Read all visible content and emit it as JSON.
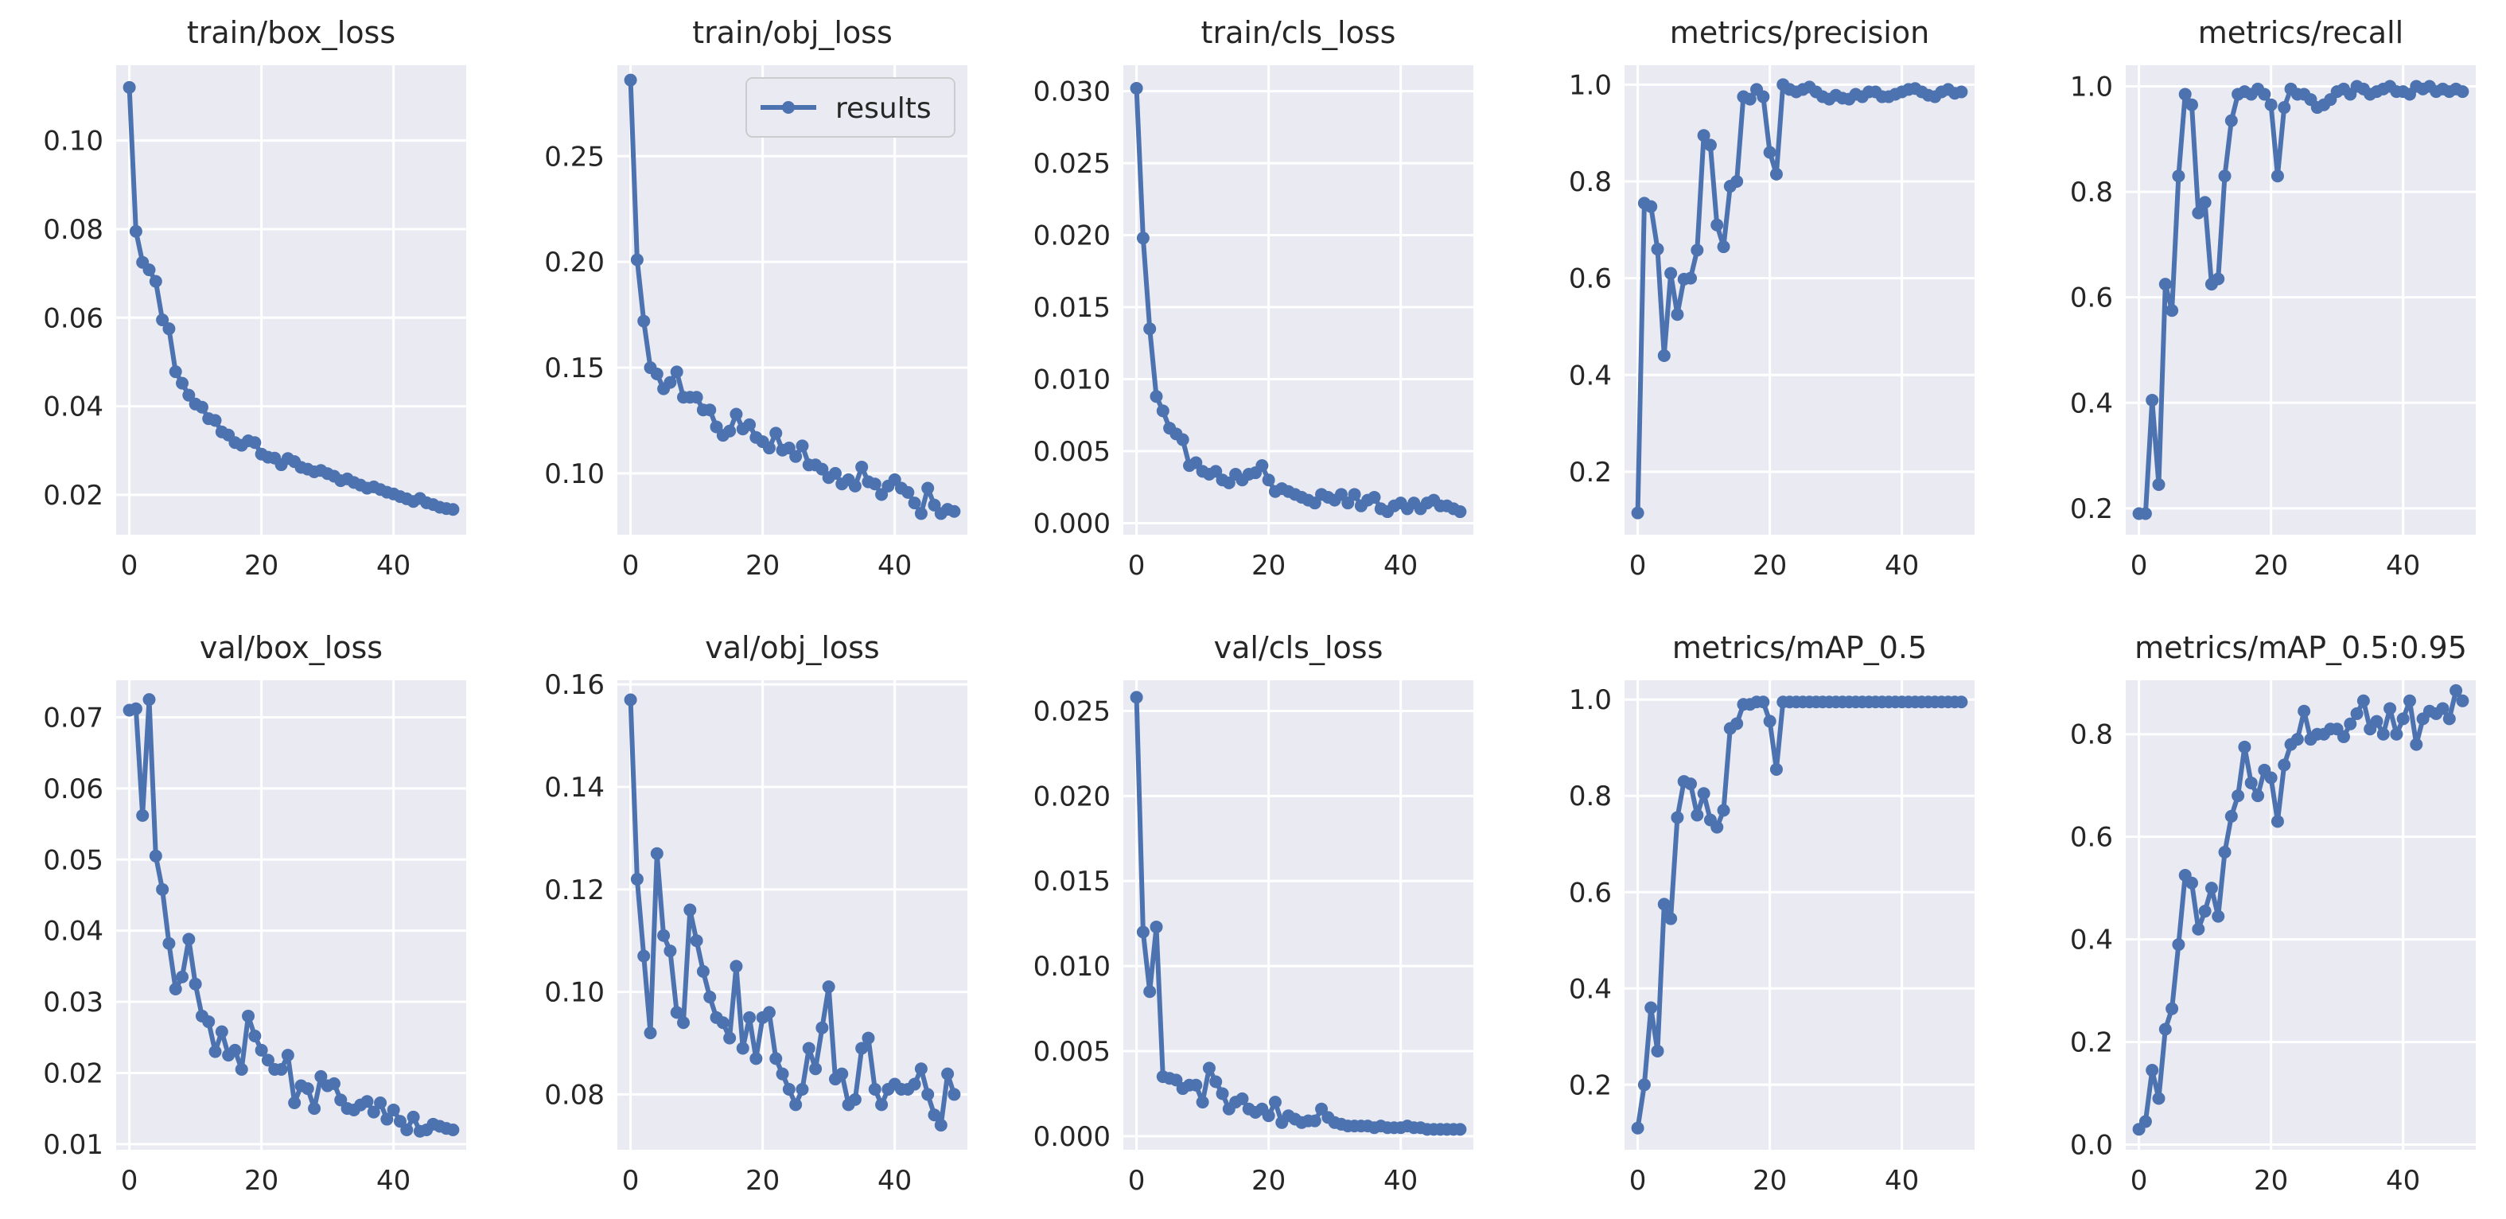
{
  "figure": {
    "colors": {
      "background": "#ffffff",
      "axes_face": "#eaeaf2",
      "grid": "#ffffff",
      "series": "#4c72b0",
      "text": "#262626"
    },
    "legend": {
      "label": "results",
      "placement": "top-right",
      "panel": "train/obj_loss"
    }
  },
  "chart_data": [
    {
      "type": "line",
      "title": "train/box_loss",
      "xlim": [
        -2,
        51
      ],
      "ylim": [
        0.011,
        0.117
      ],
      "xticks": [
        0,
        20,
        40
      ],
      "xtick_labels": [
        "0",
        "20",
        "40"
      ],
      "yticks": [
        0.02,
        0.04,
        0.06,
        0.08,
        0.1
      ],
      "ytick_labels": [
        "0.02",
        "0.04",
        "0.06",
        "0.08",
        "0.10"
      ],
      "series": [
        {
          "name": "results",
          "values": [
            0.112,
            0.0795,
            0.0725,
            0.0708,
            0.0682,
            0.0595,
            0.0575,
            0.0478,
            0.0452,
            0.0425,
            0.0405,
            0.0398,
            0.0372,
            0.0368,
            0.0342,
            0.0335,
            0.0318,
            0.0312,
            0.0322,
            0.0318,
            0.0292,
            0.0285,
            0.0283,
            0.0268,
            0.0282,
            0.0275,
            0.0262,
            0.0258,
            0.0252,
            0.0255,
            0.0248,
            0.0242,
            0.0232,
            0.0236,
            0.0228,
            0.0222,
            0.0215,
            0.0218,
            0.0212,
            0.0206,
            0.0202,
            0.0196,
            0.0191,
            0.0185,
            0.0192,
            0.0182,
            0.0178,
            0.0172,
            0.0169,
            0.0167
          ]
        }
      ]
    },
    {
      "type": "line",
      "title": "train/obj_loss",
      "xlim": [
        -2,
        51
      ],
      "ylim": [
        0.071,
        0.293
      ],
      "xticks": [
        0,
        20,
        40
      ],
      "xtick_labels": [
        "0",
        "20",
        "40"
      ],
      "yticks": [
        0.1,
        0.15,
        0.2,
        0.25
      ],
      "ytick_labels": [
        "0.10",
        "0.15",
        "0.20",
        "0.25"
      ],
      "series": [
        {
          "name": "results",
          "values": [
            0.286,
            0.201,
            0.172,
            0.15,
            0.147,
            0.14,
            0.143,
            0.148,
            0.136,
            0.136,
            0.136,
            0.13,
            0.13,
            0.122,
            0.118,
            0.12,
            0.128,
            0.121,
            0.123,
            0.117,
            0.115,
            0.112,
            0.119,
            0.111,
            0.112,
            0.108,
            0.113,
            0.104,
            0.104,
            0.102,
            0.098,
            0.1,
            0.095,
            0.097,
            0.094,
            0.103,
            0.096,
            0.095,
            0.09,
            0.094,
            0.097,
            0.093,
            0.091,
            0.086,
            0.081,
            0.093,
            0.085,
            0.081,
            0.083,
            0.082
          ]
        }
      ]
    },
    {
      "type": "line",
      "title": "train/cls_loss",
      "xlim": [
        -2,
        51
      ],
      "ylim": [
        -0.0008,
        0.0318
      ],
      "xticks": [
        0,
        20,
        40
      ],
      "xtick_labels": [
        "0",
        "20",
        "40"
      ],
      "yticks": [
        0.0,
        0.005,
        0.01,
        0.015,
        0.02,
        0.025,
        0.03
      ],
      "ytick_labels": [
        "0.000",
        "0.005",
        "0.010",
        "0.015",
        "0.020",
        "0.025",
        "0.030"
      ],
      "series": [
        {
          "name": "results",
          "values": [
            0.0302,
            0.0198,
            0.0135,
            0.0088,
            0.0078,
            0.0066,
            0.0062,
            0.0058,
            0.004,
            0.0042,
            0.0036,
            0.0034,
            0.0036,
            0.003,
            0.0028,
            0.0034,
            0.003,
            0.0034,
            0.0035,
            0.004,
            0.003,
            0.0022,
            0.0024,
            0.0022,
            0.002,
            0.0018,
            0.0016,
            0.0014,
            0.002,
            0.0018,
            0.0016,
            0.002,
            0.0014,
            0.002,
            0.0012,
            0.0016,
            0.0018,
            0.001,
            0.0008,
            0.0012,
            0.0014,
            0.001,
            0.0014,
            0.001,
            0.0014,
            0.0016,
            0.0012,
            0.0012,
            0.001,
            0.0008
          ]
        }
      ]
    },
    {
      "type": "line",
      "title": "metrics/precision",
      "xlim": [
        -2,
        51
      ],
      "ylim": [
        0.07,
        1.04
      ],
      "xticks": [
        0,
        20,
        40
      ],
      "xtick_labels": [
        "0",
        "20",
        "40"
      ],
      "yticks": [
        0.2,
        0.4,
        0.6,
        0.8,
        1.0
      ],
      "ytick_labels": [
        "0.2",
        "0.4",
        "0.6",
        "0.8",
        "1.0"
      ],
      "series": [
        {
          "name": "results",
          "values": [
            0.115,
            0.755,
            0.748,
            0.66,
            0.44,
            0.61,
            0.525,
            0.598,
            0.6,
            0.658,
            0.895,
            0.875,
            0.71,
            0.665,
            0.79,
            0.8,
            0.975,
            0.97,
            0.99,
            0.975,
            0.86,
            0.815,
            1.0,
            0.99,
            0.985,
            0.99,
            0.995,
            0.985,
            0.975,
            0.97,
            0.978,
            0.972,
            0.97,
            0.98,
            0.975,
            0.985,
            0.985,
            0.975,
            0.975,
            0.98,
            0.985,
            0.99,
            0.992,
            0.985,
            0.978,
            0.975,
            0.985,
            0.99,
            0.982,
            0.985
          ]
        }
      ]
    },
    {
      "type": "line",
      "title": "metrics/recall",
      "xlim": [
        -2,
        51
      ],
      "ylim": [
        0.15,
        1.04
      ],
      "xticks": [
        0,
        20,
        40
      ],
      "xtick_labels": [
        "0",
        "20",
        "40"
      ],
      "yticks": [
        0.2,
        0.4,
        0.6,
        0.8,
        1.0
      ],
      "ytick_labels": [
        "0.2",
        "0.4",
        "0.6",
        "0.8",
        "1.0"
      ],
      "series": [
        {
          "name": "results",
          "values": [
            0.19,
            0.19,
            0.405,
            0.245,
            0.625,
            0.575,
            0.83,
            0.985,
            0.965,
            0.76,
            0.78,
            0.625,
            0.635,
            0.83,
            0.935,
            0.985,
            0.99,
            0.985,
            0.995,
            0.985,
            0.965,
            0.83,
            0.96,
            0.995,
            0.985,
            0.985,
            0.975,
            0.96,
            0.965,
            0.975,
            0.99,
            0.995,
            0.985,
            1.0,
            0.995,
            0.985,
            0.99,
            0.995,
            1.0,
            0.99,
            0.99,
            0.985,
            1.0,
            0.995,
            1.0,
            0.99,
            0.995,
            0.99,
            0.995,
            0.99
          ]
        }
      ]
    },
    {
      "type": "line",
      "title": "val/box_loss",
      "xlim": [
        -2,
        51
      ],
      "ylim": [
        0.0092,
        0.0752
      ],
      "xticks": [
        0,
        20,
        40
      ],
      "xtick_labels": [
        "0",
        "20",
        "40"
      ],
      "yticks": [
        0.01,
        0.02,
        0.03,
        0.04,
        0.05,
        0.06,
        0.07
      ],
      "ytick_labels": [
        "0.01",
        "0.02",
        "0.03",
        "0.04",
        "0.05",
        "0.06",
        "0.07"
      ],
      "series": [
        {
          "name": "results",
          "values": [
            0.071,
            0.0712,
            0.0562,
            0.0725,
            0.0505,
            0.0458,
            0.0382,
            0.0318,
            0.0335,
            0.0388,
            0.0325,
            0.028,
            0.0272,
            0.023,
            0.0258,
            0.0225,
            0.0232,
            0.0205,
            0.028,
            0.0252,
            0.0232,
            0.0218,
            0.0205,
            0.0205,
            0.0225,
            0.0158,
            0.0182,
            0.0178,
            0.015,
            0.0195,
            0.0182,
            0.0185,
            0.0162,
            0.015,
            0.0148,
            0.0155,
            0.016,
            0.0145,
            0.0158,
            0.0135,
            0.0148,
            0.0132,
            0.012,
            0.0138,
            0.0118,
            0.012,
            0.0128,
            0.0125,
            0.0122,
            0.012
          ]
        }
      ]
    },
    {
      "type": "line",
      "title": "val/obj_loss",
      "xlim": [
        -2,
        51
      ],
      "ylim": [
        0.0692,
        0.1608
      ],
      "xticks": [
        0,
        20,
        40
      ],
      "xtick_labels": [
        "0",
        "20",
        "40"
      ],
      "yticks": [
        0.08,
        0.1,
        0.12,
        0.14,
        0.16
      ],
      "ytick_labels": [
        "0.08",
        "0.10",
        "0.12",
        "0.14",
        "0.16"
      ],
      "series": [
        {
          "name": "results",
          "values": [
            0.157,
            0.122,
            0.107,
            0.092,
            0.127,
            0.111,
            0.108,
            0.096,
            0.094,
            0.116,
            0.11,
            0.104,
            0.099,
            0.095,
            0.094,
            0.091,
            0.105,
            0.089,
            0.095,
            0.087,
            0.095,
            0.096,
            0.087,
            0.084,
            0.081,
            0.078,
            0.081,
            0.089,
            0.085,
            0.093,
            0.101,
            0.083,
            0.084,
            0.078,
            0.079,
            0.089,
            0.091,
            0.081,
            0.078,
            0.081,
            0.082,
            0.081,
            0.081,
            0.082,
            0.085,
            0.08,
            0.076,
            0.074,
            0.084,
            0.08
          ]
        }
      ]
    },
    {
      "type": "line",
      "title": "val/cls_loss",
      "xlim": [
        -2,
        51
      ],
      "ylim": [
        -0.0008,
        0.0268
      ],
      "xticks": [
        0,
        20,
        40
      ],
      "xtick_labels": [
        "0",
        "20",
        "40"
      ],
      "yticks": [
        0.0,
        0.005,
        0.01,
        0.015,
        0.02,
        0.025
      ],
      "ytick_labels": [
        "0.000",
        "0.005",
        "0.010",
        "0.015",
        "0.020",
        "0.025"
      ],
      "series": [
        {
          "name": "results",
          "values": [
            0.0258,
            0.012,
            0.0085,
            0.0123,
            0.0035,
            0.0034,
            0.0033,
            0.0028,
            0.003,
            0.003,
            0.002,
            0.004,
            0.0032,
            0.0025,
            0.0016,
            0.002,
            0.0022,
            0.0016,
            0.0014,
            0.0016,
            0.0012,
            0.002,
            0.0008,
            0.0012,
            0.001,
            0.0008,
            0.0009,
            0.0009,
            0.0016,
            0.0011,
            0.0008,
            0.0007,
            0.0006,
            0.0006,
            0.0006,
            0.0006,
            0.0005,
            0.0006,
            0.0005,
            0.0005,
            0.0005,
            0.0006,
            0.0005,
            0.0005,
            0.0004,
            0.0004,
            0.0004,
            0.0004,
            0.0004,
            0.0004
          ]
        }
      ]
    },
    {
      "type": "line",
      "title": "metrics/mAP_0.5",
      "xlim": [
        -2,
        51
      ],
      "ylim": [
        0.065,
        1.04
      ],
      "xticks": [
        0,
        20,
        40
      ],
      "xtick_labels": [
        "0",
        "20",
        "40"
      ],
      "yticks": [
        0.2,
        0.4,
        0.6,
        0.8,
        1.0
      ],
      "ytick_labels": [
        "0.2",
        "0.4",
        "0.6",
        "0.8",
        "1.0"
      ],
      "series": [
        {
          "name": "results",
          "values": [
            0.11,
            0.2,
            0.36,
            0.27,
            0.575,
            0.545,
            0.755,
            0.83,
            0.825,
            0.76,
            0.805,
            0.75,
            0.735,
            0.77,
            0.94,
            0.95,
            0.99,
            0.99,
            0.995,
            0.995,
            0.955,
            0.855,
            0.995,
            0.995,
            0.995,
            0.995,
            0.995,
            0.995,
            0.995,
            0.995,
            0.995,
            0.995,
            0.995,
            0.995,
            0.995,
            0.995,
            0.995,
            0.995,
            0.995,
            0.995,
            0.995,
            0.995,
            0.995,
            0.995,
            0.995,
            0.995,
            0.995,
            0.995,
            0.995,
            0.995
          ]
        }
      ]
    },
    {
      "type": "line",
      "title": "metrics/mAP_0.5:0.95",
      "xlim": [
        -2,
        51
      ],
      "ylim": [
        -0.01,
        0.905
      ],
      "xticks": [
        0,
        20,
        40
      ],
      "xtick_labels": [
        "0",
        "20",
        "40"
      ],
      "yticks": [
        0.0,
        0.2,
        0.4,
        0.6,
        0.8
      ],
      "ytick_labels": [
        "0.0",
        "0.2",
        "0.4",
        "0.6",
        "0.8"
      ],
      "series": [
        {
          "name": "results",
          "values": [
            0.03,
            0.045,
            0.145,
            0.09,
            0.225,
            0.265,
            0.39,
            0.525,
            0.51,
            0.42,
            0.455,
            0.5,
            0.445,
            0.57,
            0.64,
            0.68,
            0.775,
            0.705,
            0.68,
            0.73,
            0.715,
            0.63,
            0.74,
            0.78,
            0.79,
            0.845,
            0.79,
            0.8,
            0.8,
            0.81,
            0.81,
            0.795,
            0.82,
            0.84,
            0.865,
            0.81,
            0.825,
            0.8,
            0.85,
            0.8,
            0.83,
            0.865,
            0.78,
            0.83,
            0.845,
            0.84,
            0.85,
            0.83,
            0.885,
            0.865
          ]
        }
      ]
    }
  ]
}
